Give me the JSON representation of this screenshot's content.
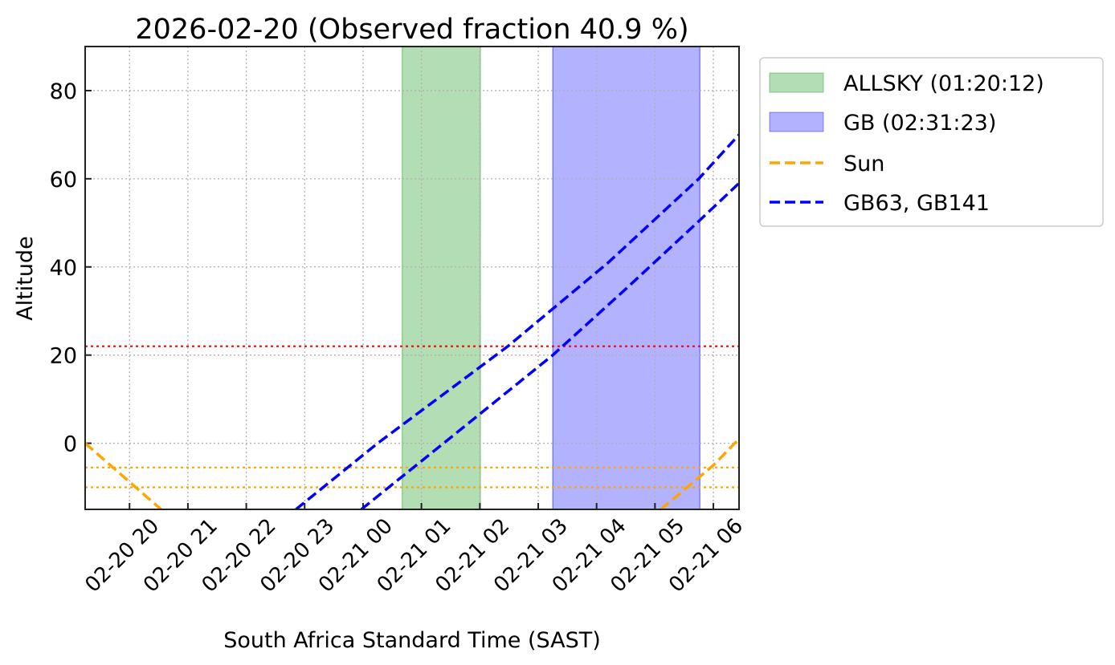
{
  "chart_data": {
    "type": "line",
    "title": "2026-02-20 (Observed fraction 40.9 %)",
    "xlabel": "South Africa Standard Time (SAST)",
    "ylabel": "Altitude",
    "x_units": "hours relative to 2026-02-21 00:00 SAST",
    "xlim": [
      -4.76,
      6.44
    ],
    "ylim": [
      -15,
      90
    ],
    "grid": true,
    "xticks": [
      {
        "v": -4,
        "label": "02-20 20"
      },
      {
        "v": -3,
        "label": "02-20 21"
      },
      {
        "v": -2,
        "label": "02-20 22"
      },
      {
        "v": -1,
        "label": "02-20 23"
      },
      {
        "v": 0,
        "label": "02-21 00"
      },
      {
        "v": 1,
        "label": "02-21 01"
      },
      {
        "v": 2,
        "label": "02-21 02"
      },
      {
        "v": 3,
        "label": "02-21 03"
      },
      {
        "v": 4,
        "label": "02-21 04"
      },
      {
        "v": 5,
        "label": "02-21 05"
      },
      {
        "v": 6,
        "label": "02-21 06"
      }
    ],
    "yticks": [
      0,
      20,
      40,
      60,
      80
    ],
    "spans": [
      {
        "name": "ALLSKY (01:20:12)",
        "start": 0.67,
        "end": 2.01,
        "color": "#2ca02c"
      },
      {
        "name": "GB (02:31:23)",
        "start": 3.25,
        "end": 5.77,
        "color": "#0000ff"
      }
    ],
    "hlines": [
      {
        "y": 22,
        "color": "#ff0000"
      },
      {
        "y": -5.5,
        "color": "#ffa500"
      },
      {
        "y": -10,
        "color": "#ffa500"
      }
    ],
    "series": [
      {
        "name": "Sun",
        "color": "#ffa500",
        "segments": [
          [
            [
              -4.76,
              0
            ],
            [
              -3.46,
              -15
            ]
          ],
          [
            [
              5.1,
              -15
            ],
            [
              5.55,
              -10
            ],
            [
              6.0,
              -5
            ],
            [
              6.44,
              1
            ]
          ]
        ]
      },
      {
        "name": "GB63",
        "color": "#0000ff",
        "segments": [
          [
            [
              -1.15,
              -15
            ],
            [
              0.25,
              0
            ],
            [
              2.48,
              22
            ],
            [
              4.2,
              41
            ],
            [
              5.75,
              60
            ],
            [
              6.44,
              70
            ]
          ]
        ]
      },
      {
        "name": "GB141",
        "color": "#0000ff",
        "segments": [
          [
            [
              -0.03,
              -15
            ],
            [
              1.38,
              0
            ],
            [
              3.25,
              20
            ],
            [
              4.5,
              35
            ],
            [
              5.72,
              50
            ],
            [
              6.44,
              59
            ]
          ]
        ]
      }
    ],
    "legend": {
      "placement": "outside-top-right",
      "entries": [
        "ALLSKY (01:20:12)",
        "GB (02:31:23)",
        "Sun",
        "GB63, GB141"
      ]
    }
  }
}
